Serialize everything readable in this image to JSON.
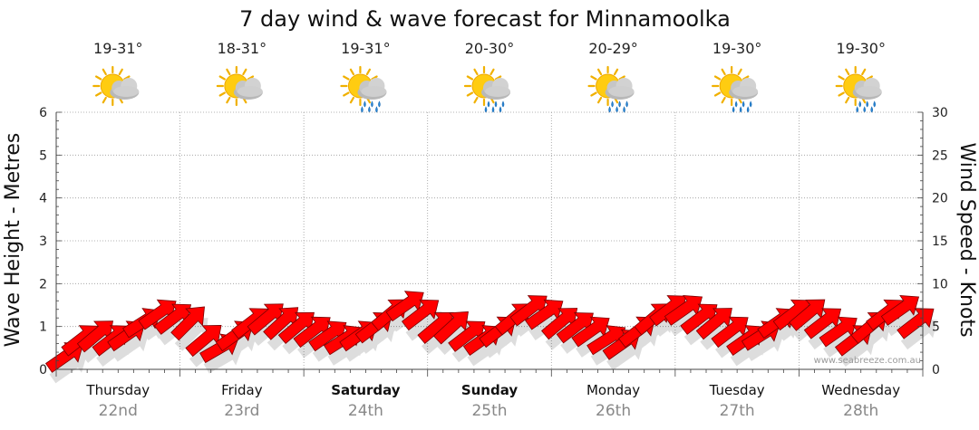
{
  "chart_data": {
    "type": "line",
    "title": "7 day wind & wave forecast for Minnamoolka",
    "y_left_label": "Wave Height - Metres",
    "y_right_label": "Wind Speed - Knots",
    "y_left_range": [
      0,
      6
    ],
    "y_left_ticks": [
      "0",
      "1",
      "2",
      "3",
      "4",
      "5",
      "6"
    ],
    "y_right_range": [
      0,
      30
    ],
    "y_right_ticks": [
      "0",
      "5",
      "10",
      "15",
      "20",
      "25",
      "30"
    ],
    "grid": true,
    "watermark": "www.seabreeze.com.au",
    "days": [
      {
        "name": "Thursday",
        "date": "22nd",
        "temp": "19-31°",
        "weather": "partly-cloudy",
        "bold": false
      },
      {
        "name": "Friday",
        "date": "23rd",
        "temp": "18-31°",
        "weather": "partly-cloudy",
        "bold": false
      },
      {
        "name": "Saturday",
        "date": "24th",
        "temp": "19-31°",
        "weather": "showers",
        "bold": true
      },
      {
        "name": "Sunday",
        "date": "25th",
        "temp": "20-30°",
        "weather": "showers",
        "bold": true
      },
      {
        "name": "Monday",
        "date": "26th",
        "temp": "20-29°",
        "weather": "showers",
        "bold": false
      },
      {
        "name": "Tuesday",
        "date": "27th",
        "temp": "19-30°",
        "weather": "showers",
        "bold": false
      },
      {
        "name": "Wednesday",
        "date": "28th",
        "temp": "19-30°",
        "weather": "showers",
        "bold": false
      }
    ],
    "series": [
      {
        "name": "Wind Speed (knots)",
        "color": "#ff0000",
        "x_hours": [
          0,
          3,
          6,
          9,
          12,
          15,
          18,
          21,
          24,
          27,
          30,
          33,
          36,
          39,
          42,
          45,
          48,
          51,
          54,
          57,
          60,
          63,
          66,
          69,
          72,
          75,
          78,
          81,
          84,
          87,
          90,
          93,
          96,
          99,
          102,
          105,
          108,
          111,
          114,
          117,
          120,
          123,
          126,
          129,
          132,
          135,
          138,
          141,
          144,
          147,
          150,
          153,
          156,
          159,
          162,
          165
        ],
        "values": [
          1.5,
          3.5,
          4,
          3.5,
          4,
          5.5,
          6.5,
          6,
          5.5,
          3.5,
          2.5,
          4,
          5.5,
          6,
          5.5,
          5,
          4.5,
          4,
          3.5,
          4,
          5,
          6.5,
          7.5,
          6.5,
          5,
          5,
          4,
          3.5,
          4.5,
          6,
          7,
          6.5,
          5.5,
          5,
          4.5,
          3.5,
          3,
          4.5,
          6,
          7,
          7,
          6,
          5.5,
          4.5,
          3.5,
          4,
          5.5,
          6.5,
          6.5,
          5.5,
          4.5,
          3.5,
          5,
          6.5,
          7,
          5.5
        ],
        "directions_deg": [
          40,
          45,
          50,
          45,
          40,
          35,
          40,
          45,
          60,
          50,
          30,
          40,
          45,
          50,
          55,
          50,
          45,
          40,
          35,
          40,
          45,
          50,
          40,
          45,
          50,
          55,
          45,
          40,
          45,
          50,
          45,
          40,
          50,
          45,
          40,
          35,
          40,
          45,
          50,
          45,
          40,
          45,
          50,
          45,
          40,
          35,
          40,
          45,
          50,
          45,
          40,
          45,
          50,
          45,
          40,
          45
        ]
      }
    ]
  }
}
